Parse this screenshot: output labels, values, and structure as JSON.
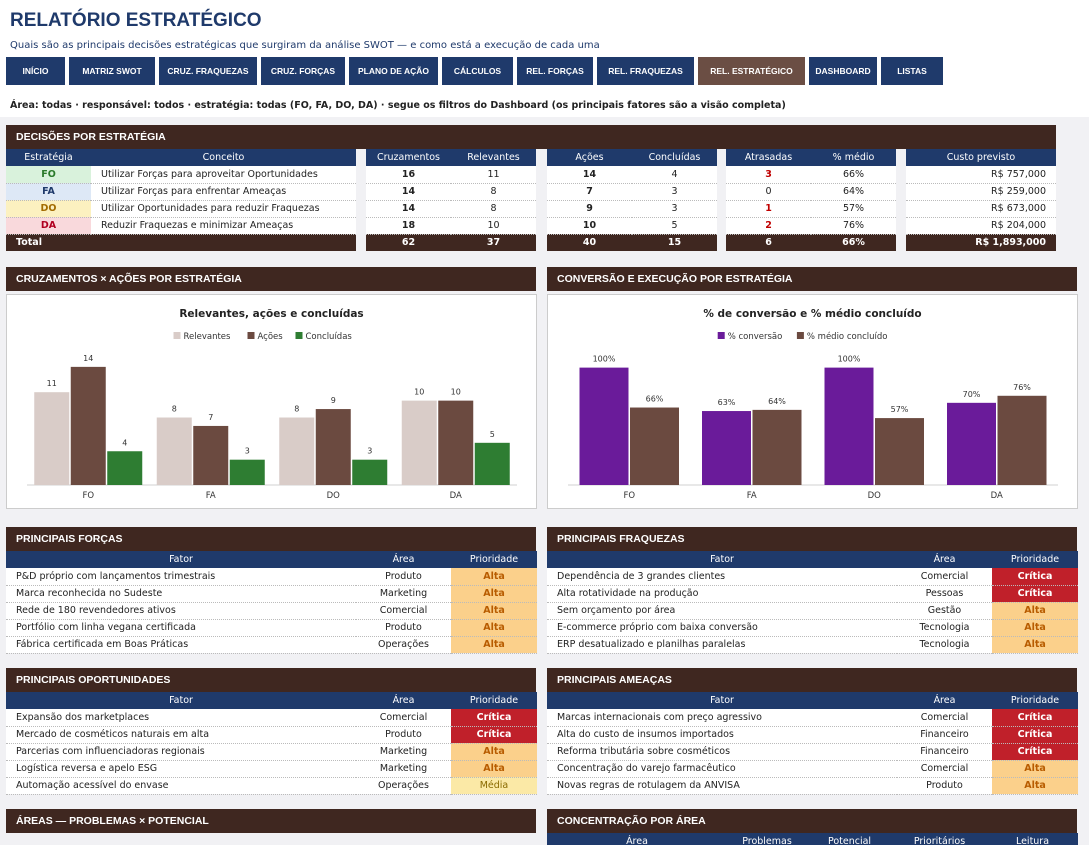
{
  "title": "RELATÓRIO ESTRATÉGICO",
  "subtitle": "Quais são as principais decisões estratégicas que surgiram da análise SWOT — e como está a execução de cada uma",
  "nav": [
    "INÍCIO",
    "MATRIZ SWOT",
    "CRUZ. FRAQUEZAS",
    "CRUZ. FORÇAS",
    "PLANO DE AÇÃO",
    "CÁLCULOS",
    "REL. FORÇAS",
    "REL. FRAQUEZAS",
    "REL. ESTRATÉGICO",
    "DASHBOARD",
    "LISTAS"
  ],
  "nav_active": "REL. ESTRATÉGICO",
  "filters": "Área: todas  ·  responsável: todos  ·  estratégia: todas (FO, FA, DO, DA)  ·  segue os filtros do Dashboard (os principais fatores são a visão completa)",
  "decisoes": {
    "header": "DECISÕES POR ESTRATÉGIA",
    "cols": {
      "estrategia": "Estratégia",
      "conceito": "Conceito",
      "cruzamentos": "Cruzamentos",
      "relevantes": "Relevantes",
      "acoes": "Ações",
      "concluidas": "Concluídas",
      "atrasadas": "Atrasadas",
      "medio": "% médio",
      "custo": "Custo previsto"
    },
    "rows": [
      {
        "code": "FO",
        "conceito": "Utilizar Forças para aproveitar Oportunidades",
        "cruzamentos": "16",
        "relevantes": "11",
        "acoes": "14",
        "concluidas": "4",
        "atrasadas": "3",
        "medio": "66%",
        "custo": "R$ 757,000"
      },
      {
        "code": "FA",
        "conceito": "Utilizar Forças para enfrentar Ameaças",
        "cruzamentos": "14",
        "relevantes": "8",
        "acoes": "7",
        "concluidas": "3",
        "atrasadas": "0",
        "medio": "64%",
        "custo": "R$ 259,000"
      },
      {
        "code": "DO",
        "conceito": "Utilizar Oportunidades para reduzir Fraquezas",
        "cruzamentos": "14",
        "relevantes": "8",
        "acoes": "9",
        "concluidas": "3",
        "atrasadas": "1",
        "medio": "57%",
        "custo": "R$ 673,000"
      },
      {
        "code": "DA",
        "conceito": "Reduzir Fraquezas e minimizar Ameaças",
        "cruzamentos": "18",
        "relevantes": "10",
        "acoes": "10",
        "concluidas": "5",
        "atrasadas": "2",
        "medio": "76%",
        "custo": "R$ 204,000"
      }
    ],
    "total": {
      "label": "Total",
      "cruzamentos": "62",
      "relevantes": "37",
      "acoes": "40",
      "concluidas": "15",
      "atrasadas": "6",
      "medio": "66%",
      "custo": "R$ 1,893,000"
    }
  },
  "chart1_header": "CRUZAMENTOS × AÇÕES POR ESTRATÉGIA",
  "chart2_header": "CONVERSÃO E EXECUÇÃO POR ESTRATÉGIA",
  "chart_data": [
    {
      "type": "bar",
      "title": "Relevantes, ações e concluídas",
      "categories": [
        "FO",
        "FA",
        "DO",
        "DA"
      ],
      "series": [
        {
          "name": "Relevantes",
          "values": [
            11,
            8,
            8,
            10
          ],
          "color": "#d9ccc8"
        },
        {
          "name": "Ações",
          "values": [
            14,
            7,
            9,
            10
          ],
          "color": "#6b4a40"
        },
        {
          "name": "Concluídas",
          "values": [
            4,
            3,
            3,
            5
          ],
          "color": "#2e7d32"
        }
      ],
      "ylim": [
        0,
        16
      ],
      "legend": "top"
    },
    {
      "type": "bar",
      "title": "% de conversão e % médio concluído",
      "categories": [
        "FO",
        "FA",
        "DO",
        "DA"
      ],
      "series": [
        {
          "name": "% conversão",
          "values": [
            100,
            63,
            100,
            70
          ],
          "color": "#6a1b9a"
        },
        {
          "name": "% médio concluído",
          "values": [
            66,
            64,
            57,
            76
          ],
          "color": "#6b4a40"
        }
      ],
      "ylim": [
        0,
        115
      ],
      "value_suffix": "%",
      "legend": "top"
    }
  ],
  "cols_fator": {
    "fator": "Fator",
    "area": "Área",
    "prioridade": "Prioridade"
  },
  "forcas": {
    "header": "PRINCIPAIS FORÇAS",
    "rows": [
      {
        "fator": "P&D próprio com lançamentos trimestrais",
        "area": "Produto",
        "prioridade": "Alta"
      },
      {
        "fator": "Marca reconhecida no Sudeste",
        "area": "Marketing",
        "prioridade": "Alta"
      },
      {
        "fator": "Rede de 180 revendedores ativos",
        "area": "Comercial",
        "prioridade": "Alta"
      },
      {
        "fator": "Portfólio com linha vegana certificada",
        "area": "Produto",
        "prioridade": "Alta"
      },
      {
        "fator": "Fábrica certificada em Boas Práticas",
        "area": "Operações",
        "prioridade": "Alta"
      }
    ]
  },
  "fraquezas": {
    "header": "PRINCIPAIS FRAQUEZAS",
    "rows": [
      {
        "fator": "Dependência de 3 grandes clientes",
        "area": "Comercial",
        "prioridade": "Crítica"
      },
      {
        "fator": "Alta rotatividade na produção",
        "area": "Pessoas",
        "prioridade": "Crítica"
      },
      {
        "fator": "Sem orçamento por área",
        "area": "Gestão",
        "prioridade": "Alta"
      },
      {
        "fator": "E-commerce próprio com baixa conversão",
        "area": "Tecnologia",
        "prioridade": "Alta"
      },
      {
        "fator": "ERP desatualizado e planilhas paralelas",
        "area": "Tecnologia",
        "prioridade": "Alta"
      }
    ]
  },
  "oportunidades": {
    "header": "PRINCIPAIS OPORTUNIDADES",
    "rows": [
      {
        "fator": "Expansão dos marketplaces",
        "area": "Comercial",
        "prioridade": "Crítica"
      },
      {
        "fator": "Mercado de cosméticos naturais em alta",
        "area": "Produto",
        "prioridade": "Crítica"
      },
      {
        "fator": "Parcerias com influenciadoras regionais",
        "area": "Marketing",
        "prioridade": "Alta"
      },
      {
        "fator": "Logística reversa e apelo ESG",
        "area": "Marketing",
        "prioridade": "Alta"
      },
      {
        "fator": "Automação acessível do envase",
        "area": "Operações",
        "prioridade": "Média"
      }
    ]
  },
  "ameacas": {
    "header": "PRINCIPAIS AMEAÇAS",
    "rows": [
      {
        "fator": "Marcas internacionais com preço agressivo",
        "area": "Comercial",
        "prioridade": "Crítica"
      },
      {
        "fator": "Alta do custo de insumos importados",
        "area": "Financeiro",
        "prioridade": "Crítica"
      },
      {
        "fator": "Reforma tributária sobre cosméticos",
        "area": "Financeiro",
        "prioridade": "Crítica"
      },
      {
        "fator": "Concentração do varejo farmacêutico",
        "area": "Comercial",
        "prioridade": "Alta"
      },
      {
        "fator": "Novas regras de rotulagem da ANVISA",
        "area": "Produto",
        "prioridade": "Alta"
      }
    ]
  },
  "areas_header": "ÁREAS — PROBLEMAS × POTENCIAL",
  "concentracao": {
    "header": "CONCENTRAÇÃO POR ÁREA",
    "cols": [
      "Área",
      "Problemas",
      "Potencial",
      "Prioritários",
      "Leitura"
    ]
  }
}
